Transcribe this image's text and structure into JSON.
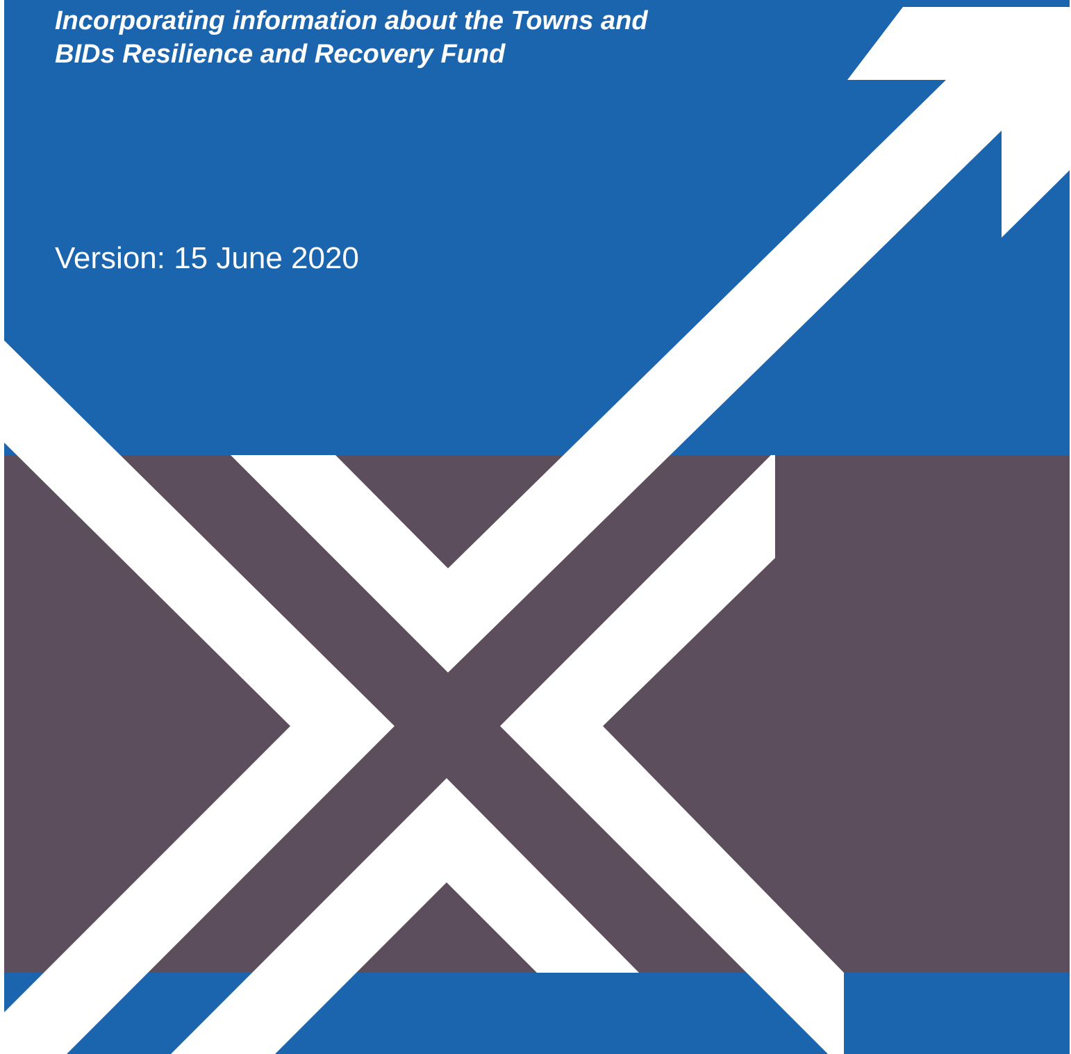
{
  "cover": {
    "subtitle": [
      "Incorporating information about the Towns and",
      "BIDs Resilience and Recovery Fund"
    ],
    "version": "Version: 15 June 2020"
  }
}
